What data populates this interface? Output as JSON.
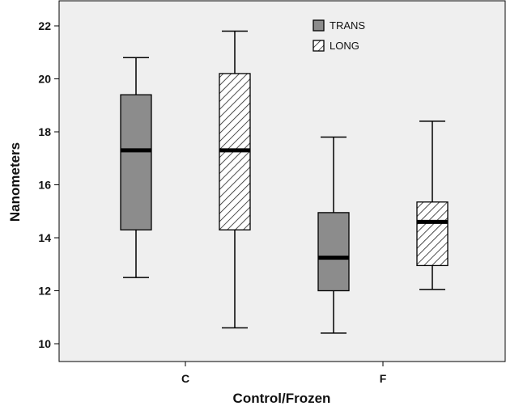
{
  "chart_data": {
    "type": "boxplot",
    "title": "",
    "xlabel": "Control/Frozen",
    "ylabel": "Nanometers",
    "ylim": [
      9.6,
      22.6
    ],
    "yticks": [
      10,
      12,
      14,
      16,
      18,
      20,
      22
    ],
    "categories": [
      "C",
      "F"
    ],
    "grid": false,
    "legend_position": "top-right",
    "series": [
      {
        "name": "TRANS",
        "pattern": "solid",
        "color": "#8c8c8c",
        "boxes": [
          {
            "category": "C",
            "min": 12.5,
            "q1": 14.3,
            "median": 17.3,
            "q3": 19.4,
            "max": 20.8
          },
          {
            "category": "F",
            "min": 10.4,
            "q1": 12.0,
            "median": 13.25,
            "q3": 14.95,
            "max": 17.8
          }
        ]
      },
      {
        "name": "LONG",
        "pattern": "diagonal-hatch",
        "color": "#ffffff",
        "boxes": [
          {
            "category": "C",
            "min": 10.6,
            "q1": 14.3,
            "median": 17.3,
            "q3": 20.2,
            "max": 21.8
          },
          {
            "category": "F",
            "min": 12.05,
            "q1": 12.95,
            "median": 14.6,
            "q3": 15.35,
            "max": 18.4
          }
        ]
      }
    ]
  }
}
